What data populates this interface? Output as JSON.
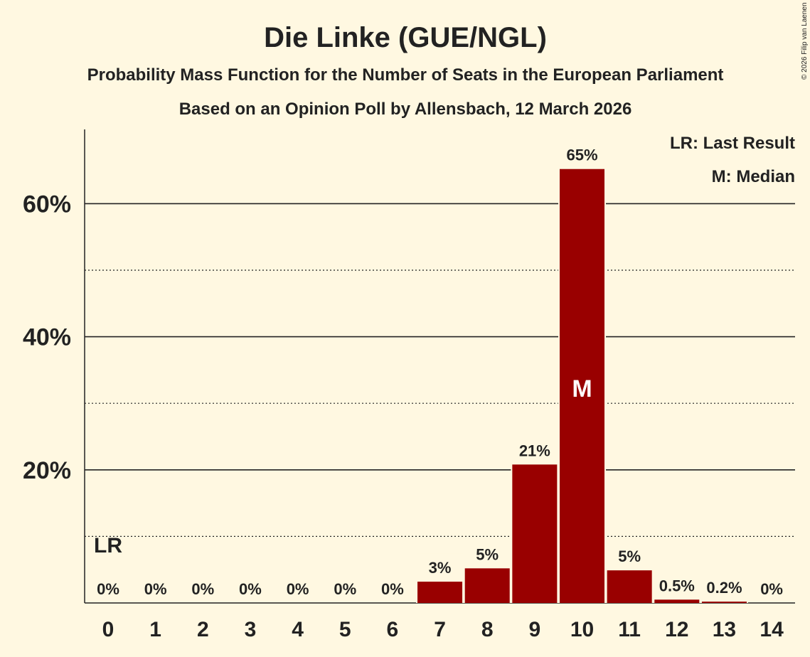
{
  "chart_data": {
    "type": "bar",
    "title": "Die Linke (GUE/NGL)",
    "subtitle": "Probability Mass Function for the Number of Seats in the European Parliament",
    "subtitle2": "Based on an Opinion Poll by Allensbach, 12 March 2026",
    "copyright": "© 2026 Filip van Laenen",
    "categories": [
      "0",
      "1",
      "2",
      "3",
      "4",
      "5",
      "6",
      "7",
      "8",
      "9",
      "10",
      "11",
      "12",
      "13",
      "14"
    ],
    "values": [
      0,
      0,
      0,
      0,
      0,
      0,
      0,
      3.2,
      5.2,
      20.8,
      65.2,
      4.9,
      0.5,
      0.2,
      0
    ],
    "labels": [
      "0%",
      "0%",
      "0%",
      "0%",
      "0%",
      "0%",
      "0%",
      "3%",
      "5%",
      "21%",
      "65%",
      "5%",
      "0.5%",
      "0.2%",
      "0%"
    ],
    "ylim": [
      0,
      71
    ],
    "yticks_major": [
      20,
      40,
      60
    ],
    "ytick_labels": [
      "20%",
      "40%",
      "60%"
    ],
    "yticks_minor": [
      10,
      30,
      50
    ],
    "last_result_index": 0,
    "last_result_marker": "LR",
    "median_index": 10,
    "median_marker": "M",
    "legend": [
      "LR: Last Result",
      "M: Median"
    ],
    "legend_position": "top-right",
    "bar_color": "#990000",
    "background": "#fff8e1"
  }
}
